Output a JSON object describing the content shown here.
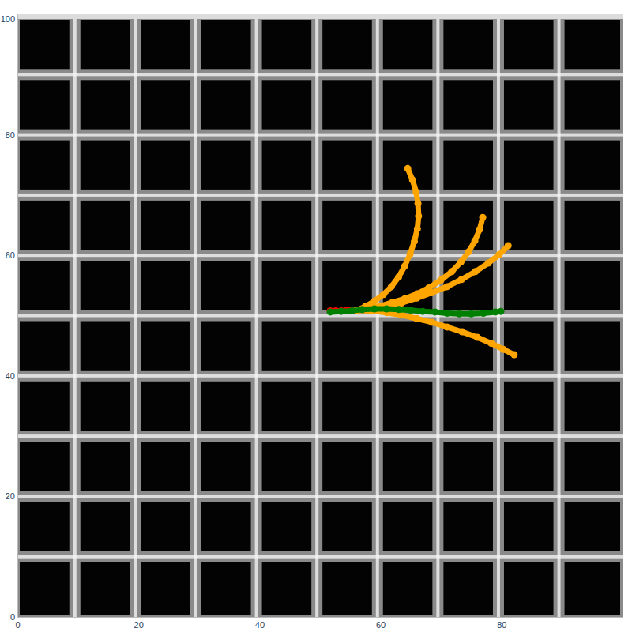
{
  "chart_data": {
    "type": "line",
    "xlim": [
      0,
      100
    ],
    "ylim": [
      0,
      100
    ],
    "xticks": [
      0,
      20,
      40,
      60,
      80
    ],
    "yticks": [
      0,
      20,
      40,
      60,
      80,
      100
    ],
    "grid": false,
    "series": [
      {
        "color": "#ff0000",
        "marker": "circle",
        "line_style": "solid",
        "x": [
          51.7,
          52.6,
          53.5,
          54.4,
          55.3,
          56.1
        ],
        "values": [
          50.8,
          50.8,
          50.8,
          50.9,
          50.9,
          50.9
        ]
      },
      {
        "color": "#ffa500",
        "marker": "circle",
        "line_style": "solid",
        "x": [
          56.1,
          57.5,
          59.0,
          60.5,
          61.8,
          63.0,
          64.0,
          64.9,
          65.6,
          66.1,
          66.3,
          66.2,
          65.9,
          65.3,
          64.5
        ],
        "values": [
          50.9,
          51.5,
          52.4,
          53.5,
          54.8,
          56.4,
          58.2,
          60.2,
          62.3,
          64.4,
          66.5,
          68.6,
          70.5,
          72.5,
          74.4
        ]
      },
      {
        "color": "#ffa500",
        "marker": "circle",
        "line_style": "solid",
        "x": [
          56.1,
          58.0,
          60.0,
          62.0,
          64.0,
          66.0,
          68.0,
          70.0,
          71.8,
          73.3,
          74.6,
          75.6,
          76.4,
          76.9
        ],
        "values": [
          50.9,
          51.2,
          51.6,
          52.2,
          52.8,
          53.6,
          54.6,
          55.9,
          57.3,
          58.9,
          60.6,
          62.4,
          64.3,
          66.3
        ]
      },
      {
        "color": "#ffa500",
        "marker": "circle",
        "line_style": "solid",
        "x": [
          56.1,
          58.5,
          61.0,
          63.5,
          66.0,
          68.5,
          71.0,
          73.4,
          75.7,
          77.8,
          79.6,
          81.1
        ],
        "values": [
          50.9,
          51.1,
          51.5,
          52.1,
          52.9,
          53.8,
          54.8,
          56.0,
          57.3,
          58.7,
          60.1,
          61.6
        ]
      },
      {
        "color": "#ffa500",
        "marker": "circle",
        "line_style": "solid",
        "x": [
          56.1,
          58.5,
          61.0,
          63.5,
          66.0,
          68.5,
          71.0,
          73.5,
          76.0,
          78.3,
          80.3,
          82.1
        ],
        "values": [
          50.9,
          50.8,
          50.5,
          50.1,
          49.5,
          48.9,
          48.1,
          47.3,
          46.4,
          45.4,
          44.4,
          43.5
        ]
      },
      {
        "color": "#008000",
        "marker": "circle",
        "line_style": "solid",
        "x": [
          51.7,
          53.5,
          55.3,
          57.0,
          59.0,
          61.0,
          63.0,
          65.0,
          67.0,
          69.0,
          71.0,
          73.0,
          75.0,
          77.0,
          79.0,
          79.9
        ],
        "values": [
          50.6,
          50.7,
          50.8,
          51.0,
          51.1,
          51.1,
          51.0,
          50.9,
          50.7,
          50.6,
          50.4,
          50.3,
          50.3,
          50.4,
          50.6,
          50.7
        ]
      }
    ]
  }
}
